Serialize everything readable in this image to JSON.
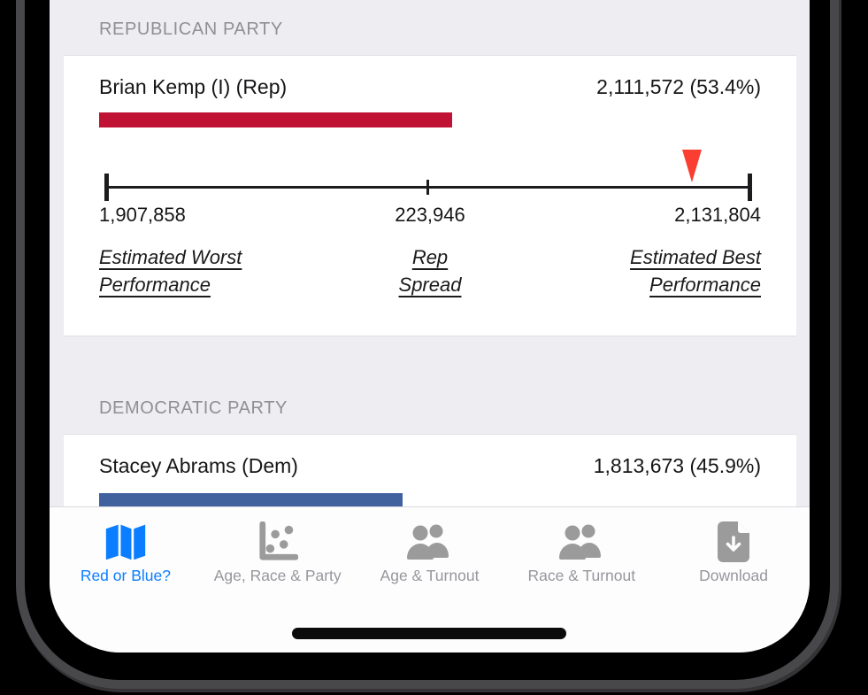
{
  "colors": {
    "screen_background": "#ededf2",
    "card": "#ffffff",
    "rep_bar": "#c01334",
    "dem_bar": "#41609e",
    "marker": "#fa3e31",
    "tab_active": "#0b7dff",
    "tab_inactive": "#97979c",
    "section_header": "#8f8f95",
    "axis": "#1c1c1e"
  },
  "sections": {
    "rep": {
      "header": "REPUBLICAN PARTY",
      "candidate": "Brian Kemp (I) (Rep)",
      "result": "2,111,572 (53.4%)",
      "bar_pct": 53.4,
      "spread_axis": {
        "worst_value": "1,907,858",
        "spread_value": "223,946",
        "best_value": "2,131,804",
        "worst_label_line1": "Estimated Worst",
        "worst_label_line2": "Performance",
        "spread_label_line1": "Rep",
        "spread_label_line2": "Spread",
        "best_label_line1": "Estimated Best",
        "best_label_line2": "Performance",
        "marker_pct": 90.97
      }
    },
    "dem": {
      "header": "DEMOCRATIC PARTY",
      "candidate": "Stacey Abrams (Dem)",
      "result": "1,813,673 (45.9%)",
      "bar_pct": 45.9
    }
  },
  "tabbar": {
    "items": [
      {
        "label": "Red or Blue?",
        "icon": "map-icon",
        "active": true
      },
      {
        "label": "Age, Race & Party",
        "icon": "scatter-chart-icon",
        "active": false
      },
      {
        "label": "Age & Turnout",
        "icon": "people-icon",
        "active": false
      },
      {
        "label": "Race & Turnout",
        "icon": "people-icon",
        "active": false
      },
      {
        "label": "Download",
        "icon": "download-icon",
        "active": false
      }
    ]
  },
  "chart_data": [
    {
      "type": "bar",
      "title": "REPUBLICAN PARTY",
      "categories": [
        "Brian Kemp (I) (Rep)"
      ],
      "values": [
        2111572
      ],
      "data_labels": [
        "2,111,572 (53.4%)"
      ],
      "percent": [
        53.4
      ],
      "bar_color": "#c01334"
    },
    {
      "type": "range-axis",
      "title": "Rep Spread",
      "min": 1907858,
      "max": 2131804,
      "min_label": "1,907,858",
      "mid_label": "223,946",
      "max_label": "2,131,804",
      "spread": 223946,
      "marker_value": 2111572,
      "annotations": [
        "Estimated Worst Performance",
        "Rep Spread",
        "Estimated Best Performance"
      ]
    },
    {
      "type": "bar",
      "title": "DEMOCRATIC PARTY",
      "categories": [
        "Stacey Abrams (Dem)"
      ],
      "values": [
        1813673
      ],
      "data_labels": [
        "1,813,673 (45.9%)"
      ],
      "percent": [
        45.9
      ],
      "bar_color": "#41609e"
    }
  ]
}
